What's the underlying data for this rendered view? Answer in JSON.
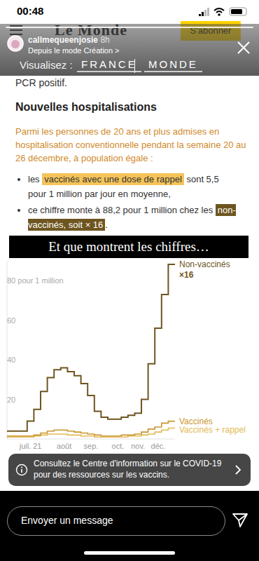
{
  "page": {
    "status_time": "00:48",
    "header": {
      "logo": "Le Monde",
      "subscribe": "S'abonner"
    },
    "story": {
      "user": "callmequeenjosie",
      "age": "8h",
      "source": "Depuis le mode Création >"
    },
    "nav": {
      "label": "Visualisez :",
      "items": [
        "FRANCE",
        "MONDE"
      ]
    },
    "article": {
      "prev_line": "PCR positif.",
      "heading": "Nouvelles hospitalisations",
      "intro": "Parmi les personnes de 20 ans et plus admises en hospitalisation conventionnelle pendant la semaine 20 au 26 décembre, à population égale :",
      "bullets": [
        {
          "before": "les ",
          "highlight": "vaccinés avec une dose de rappel",
          "after": " sont 5,5 pour 1 million par jour en moyenne,"
        },
        {
          "before": "ce chiffre monte à 88,2 pour 1 million chez les ",
          "highlight": "non-vaccinés, soit × 16",
          "after": "."
        }
      ]
    },
    "overlay": "Et que montrent les chiffres…",
    "banner": "Consultez le Centre d'information sur le COVID-19 pour des ressources sur les vaccins.",
    "reply_placeholder": "Envoyer un message"
  },
  "chart_data": {
    "type": "line",
    "line_style": "step",
    "annotation": "×16",
    "categories": [
      null,
      null,
      null,
      "juil. 21",
      null,
      null,
      null,
      null,
      "août",
      null,
      null,
      null,
      "sep.",
      null,
      null,
      null,
      "oct.",
      null,
      null,
      "nov.",
      null,
      null,
      "déc.",
      null,
      null
    ],
    "series": [
      {
        "name": "Non-vaccinés",
        "color": "#6e5520",
        "values": [
          4,
          4,
          4,
          9,
          15,
          24,
          31,
          35,
          36,
          34,
          32,
          28,
          22,
          14,
          11,
          10,
          10,
          11,
          12,
          13,
          20,
          38,
          56,
          73,
          88.2
        ]
      },
      {
        "name": "Vaccinés",
        "color": "#c9962f",
        "values": [
          1.5,
          1.5,
          1.5,
          1.5,
          2,
          3,
          4,
          4.5,
          4.5,
          4,
          3.5,
          3,
          2.5,
          2,
          1.5,
          1.5,
          1.5,
          2,
          2,
          2.5,
          3.5,
          5,
          6,
          8,
          9
        ]
      },
      {
        "name": "Vaccinés + rappel",
        "color": "#e3b955",
        "values": [
          1,
          1,
          1,
          1,
          1.5,
          2,
          2.5,
          2.5,
          2.5,
          2,
          2,
          1.5,
          1.5,
          1,
          1,
          1,
          1,
          1,
          1.5,
          1.5,
          2,
          2.5,
          3.5,
          4.5,
          5.5
        ]
      }
    ],
    "ylim": [
      0,
      90
    ],
    "yticks": [
      20,
      40,
      60,
      {
        "value": 80,
        "label": "80 pour 1 million"
      }
    ],
    "grid": false
  }
}
